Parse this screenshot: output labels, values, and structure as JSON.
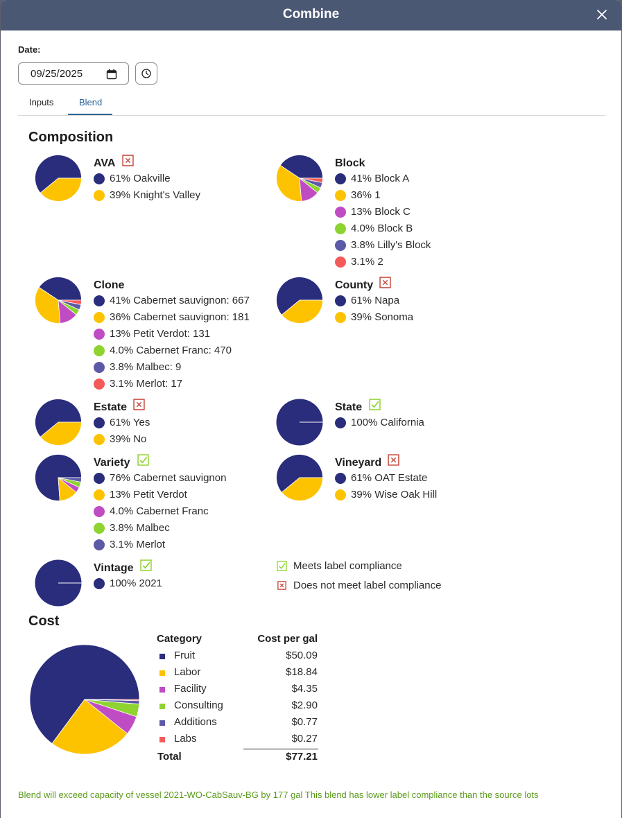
{
  "dialog": {
    "title": "Combine",
    "close_icon": "close-icon"
  },
  "date": {
    "label": "Date:",
    "value": "09/25/2025",
    "calendar_icon": "calendar-icon",
    "clock_icon": "clock-icon"
  },
  "tabs": [
    {
      "label": "Inputs",
      "active": false
    },
    {
      "label": "Blend",
      "active": true
    }
  ],
  "composition": {
    "title": "Composition",
    "colors": [
      "#2a2c7c",
      "#fdc300",
      "#c04cc4",
      "#8ed32f",
      "#5c5aa6",
      "#f55a5a"
    ],
    "groups": [
      {
        "key": "ava",
        "name": "AVA",
        "compliance": "fail",
        "items": [
          {
            "label": "61% Oakville",
            "value": 61
          },
          {
            "label": "39% Knight's Valley",
            "value": 39
          }
        ]
      },
      {
        "key": "block",
        "name": "Block",
        "compliance": null,
        "items": [
          {
            "label": "41% Block A",
            "value": 41
          },
          {
            "label": "36% 1",
            "value": 36
          },
          {
            "label": "13% Block C",
            "value": 13
          },
          {
            "label": "4.0% Block B",
            "value": 4.0
          },
          {
            "label": "3.8% Lilly's Block",
            "value": 3.8
          },
          {
            "label": "3.1% 2",
            "value": 3.1
          }
        ]
      },
      {
        "key": "clone",
        "name": "Clone",
        "compliance": null,
        "items": [
          {
            "label": "41% Cabernet sauvignon: 667",
            "value": 41
          },
          {
            "label": "36% Cabernet sauvignon: 181",
            "value": 36
          },
          {
            "label": "13% Petit Verdot: 131",
            "value": 13
          },
          {
            "label": "4.0% Cabernet Franc: 470",
            "value": 4.0
          },
          {
            "label": "3.8% Malbec: 9",
            "value": 3.8
          },
          {
            "label": "3.1% Merlot: 17",
            "value": 3.1
          }
        ]
      },
      {
        "key": "county",
        "name": "County",
        "compliance": "fail",
        "items": [
          {
            "label": "61% Napa",
            "value": 61
          },
          {
            "label": "39% Sonoma",
            "value": 39
          }
        ]
      },
      {
        "key": "estate",
        "name": "Estate",
        "compliance": "fail",
        "items": [
          {
            "label": "61% Yes",
            "value": 61
          },
          {
            "label": "39% No",
            "value": 39
          }
        ]
      },
      {
        "key": "state",
        "name": "State",
        "compliance": "pass",
        "items": [
          {
            "label": "100% California",
            "value": 100
          }
        ]
      },
      {
        "key": "variety",
        "name": "Variety",
        "compliance": "pass",
        "items": [
          {
            "label": "76% Cabernet sauvignon",
            "value": 76
          },
          {
            "label": "13% Petit Verdot",
            "value": 13
          },
          {
            "label": "4.0% Cabernet Franc",
            "value": 4.0
          },
          {
            "label": "3.8% Malbec",
            "value": 3.8
          },
          {
            "label": "3.1% Merlot",
            "value": 3.1
          }
        ]
      },
      {
        "key": "vineyard",
        "name": "Vineyard",
        "compliance": "fail",
        "items": [
          {
            "label": "61% OAT Estate",
            "value": 61
          },
          {
            "label": "39% Wise Oak Hill",
            "value": 39
          }
        ]
      },
      {
        "key": "vintage",
        "name": "Vintage",
        "compliance": "pass",
        "items": [
          {
            "label": "100% 2021",
            "value": 100
          }
        ]
      }
    ],
    "legend": {
      "pass": "Meets label compliance",
      "fail": "Does not meet label compliance"
    }
  },
  "cost": {
    "title": "Cost",
    "headers": {
      "category": "Category",
      "cost": "Cost per gal"
    },
    "rows": [
      {
        "category": "Fruit",
        "value": 50.09,
        "display": "$50.09"
      },
      {
        "category": "Labor",
        "value": 18.84,
        "display": "$18.84"
      },
      {
        "category": "Facility",
        "value": 4.35,
        "display": "$4.35"
      },
      {
        "category": "Consulting",
        "value": 2.9,
        "display": "$2.90"
      },
      {
        "category": "Additions",
        "value": 0.77,
        "display": "$0.77"
      },
      {
        "category": "Labs",
        "value": 0.27,
        "display": "$0.27"
      }
    ],
    "total_label": "Total",
    "total_value": "$77.21"
  },
  "warning": "Blend will exceed capacity of vessel 2021-WO-CabSauv-BG by 177 gal This blend has lower label compliance than the source lots"
}
